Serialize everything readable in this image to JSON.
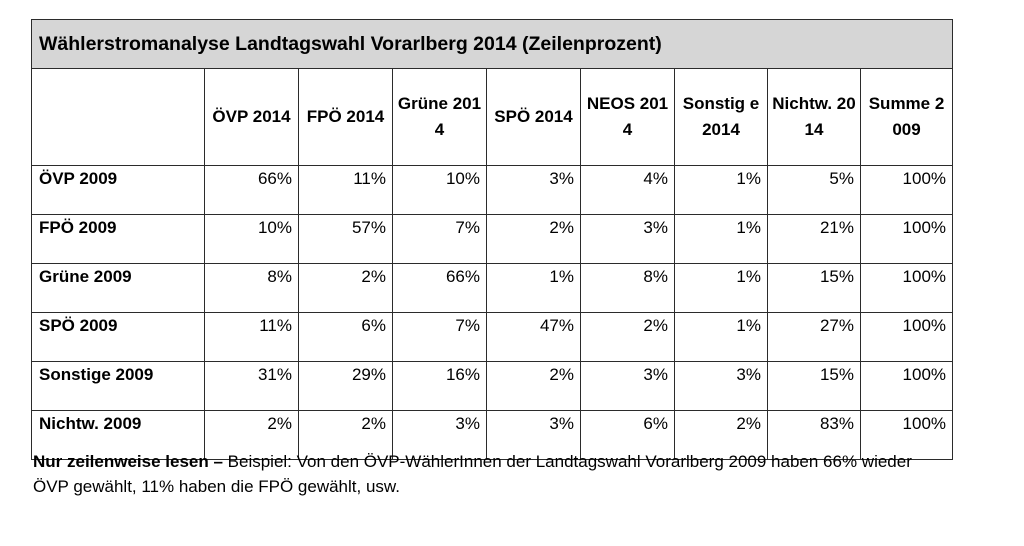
{
  "table": {
    "title": "Wählerstromanalyse Landtagswahl Vorarlberg 2014 (Zeilenprozent)",
    "columns": [
      "",
      "ÖVP 2014",
      "FPÖ 2014",
      "Grüne 2014",
      "SPÖ 2014",
      "NEOS 2014",
      "Sonstig e 2014",
      "Nichtw. 2014",
      "Summe 2009"
    ],
    "rows": [
      {
        "label": "ÖVP 2009",
        "values": [
          "66%",
          "11%",
          "10%",
          "3%",
          "4%",
          "1%",
          "5%",
          "100%"
        ]
      },
      {
        "label": "FPÖ 2009",
        "values": [
          "10%",
          "57%",
          "7%",
          "2%",
          "3%",
          "1%",
          "21%",
          "100%"
        ]
      },
      {
        "label": "Grüne 2009",
        "values": [
          "8%",
          "2%",
          "66%",
          "1%",
          "8%",
          "1%",
          "15%",
          "100%"
        ]
      },
      {
        "label": "SPÖ 2009",
        "values": [
          "11%",
          "6%",
          "7%",
          "47%",
          "2%",
          "1%",
          "27%",
          "100%"
        ]
      },
      {
        "label": "Sonstige 2009",
        "values": [
          "31%",
          "29%",
          "16%",
          "2%",
          "3%",
          "3%",
          "15%",
          "100%"
        ]
      },
      {
        "label": "Nichtw. 2009",
        "values": [
          "2%",
          "2%",
          "3%",
          "3%",
          "6%",
          "2%",
          "83%",
          "100%"
        ]
      }
    ]
  },
  "note": {
    "lead": "Nur zeilenweise lesen –",
    "text": " Beispiel: Von den ÖVP-WählerInnen der Landtagswahl Vorarlberg 2009 haben 66% wieder ÖVP gewählt, 11% haben die FPÖ gewählt, usw."
  }
}
